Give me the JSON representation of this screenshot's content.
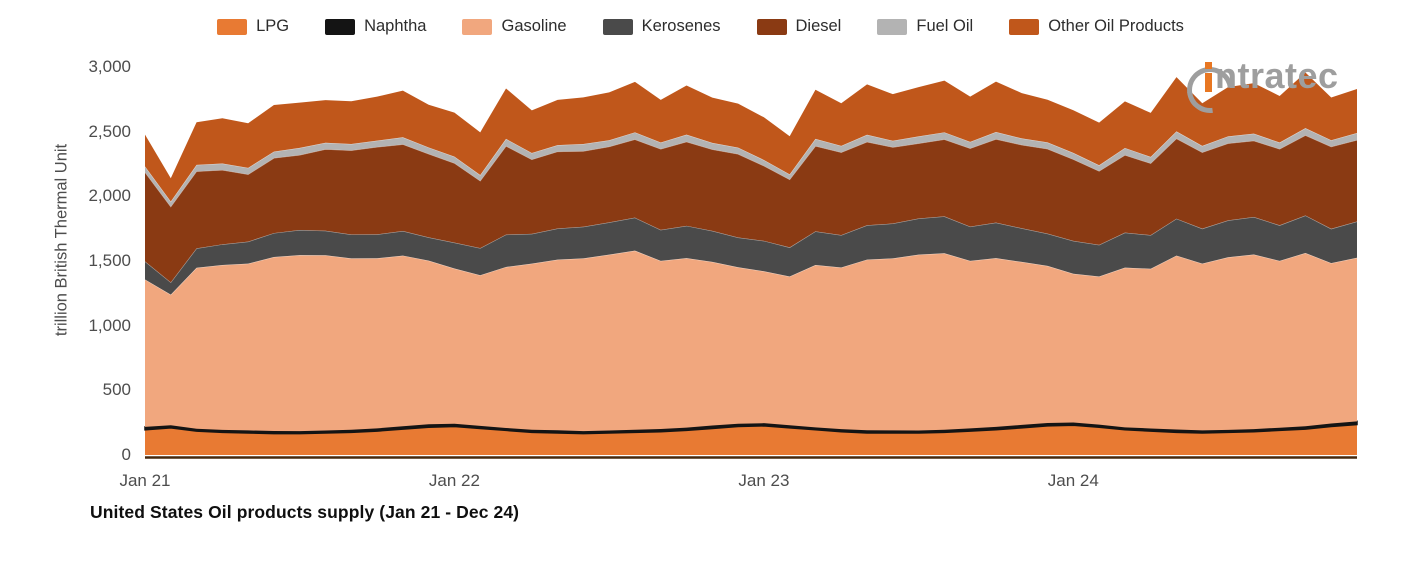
{
  "chart_data": {
    "type": "area",
    "stacked": true,
    "title": "United States Oil products supply (Jan 21 - Dec 24)",
    "xlabel": "",
    "ylabel": "trillion British Thermal Unit",
    "ylim": [
      0,
      3000
    ],
    "grid": false,
    "legend_position": "top-center",
    "yticks": [
      {
        "label": "0",
        "value": 0
      },
      {
        "label": "500",
        "value": 500
      },
      {
        "label": "1,000",
        "value": 1000
      },
      {
        "label": "1,500",
        "value": 1500
      },
      {
        "label": "2,000",
        "value": 2000
      },
      {
        "label": "2,500",
        "value": 2500
      },
      {
        "label": "3,000",
        "value": 3000
      }
    ],
    "xticks": [
      {
        "label": "Jan 21",
        "index": 0
      },
      {
        "label": "Jan 22",
        "index": 12
      },
      {
        "label": "Jan 23",
        "index": 24
      },
      {
        "label": "Jan 24",
        "index": 36
      }
    ],
    "categories": [
      "Jan 21",
      "Feb 21",
      "Mar 21",
      "Apr 21",
      "May 21",
      "Jun 21",
      "Jul 21",
      "Aug 21",
      "Sep 21",
      "Oct 21",
      "Nov 21",
      "Dec 21",
      "Jan 22",
      "Feb 22",
      "Mar 22",
      "Apr 22",
      "May 22",
      "Jun 22",
      "Jul 22",
      "Aug 22",
      "Sep 22",
      "Oct 22",
      "Nov 22",
      "Dec 22",
      "Jan 23",
      "Feb 23",
      "Mar 23",
      "Apr 23",
      "May 23",
      "Jun 23",
      "Jul 23",
      "Aug 23",
      "Sep 23",
      "Oct 23",
      "Nov 23",
      "Dec 23",
      "Jan 24",
      "Feb 24",
      "Mar 24",
      "Apr 24",
      "May 24",
      "Jun 24",
      "Jul 24",
      "Aug 24",
      "Sep 24",
      "Oct 24",
      "Nov 24",
      "Dec 24"
    ],
    "series": [
      {
        "key": "lpg",
        "name": "LPG",
        "color": "#E87A33",
        "values": [
          195,
          210,
          185,
          175,
          170,
          165,
          165,
          170,
          175,
          185,
          200,
          215,
          220,
          205,
          190,
          175,
          170,
          165,
          170,
          175,
          180,
          190,
          205,
          220,
          225,
          210,
          195,
          180,
          170,
          170,
          170,
          175,
          185,
          195,
          210,
          225,
          230,
          215,
          195,
          185,
          175,
          170,
          175,
          180,
          190,
          200,
          220,
          235
        ]
      },
      {
        "key": "naphtha",
        "name": "Naphtha",
        "color": "#141414",
        "values": [
          22,
          20,
          18,
          19,
          20,
          21,
          20,
          19,
          20,
          21,
          22,
          23,
          22,
          20,
          19,
          20,
          21,
          20,
          19,
          20,
          21,
          22,
          23,
          22,
          21,
          20,
          19,
          20,
          21,
          20,
          19,
          20,
          21,
          22,
          23,
          22,
          21,
          20,
          19,
          20,
          22,
          20,
          19,
          20,
          21,
          22,
          24,
          25
        ]
      },
      {
        "key": "gasoline",
        "name": "Gasoline",
        "color": "#F1A77E",
        "values": [
          1140,
          1010,
          1245,
          1275,
          1290,
          1345,
          1360,
          1355,
          1325,
          1315,
          1320,
          1265,
          1200,
          1165,
          1245,
          1285,
          1320,
          1335,
          1360,
          1385,
          1300,
          1310,
          1265,
          1210,
          1175,
          1150,
          1255,
          1250,
          1320,
          1330,
          1360,
          1365,
          1295,
          1305,
          1260,
          1215,
          1150,
          1145,
          1235,
          1235,
          1345,
          1290,
          1335,
          1350,
          1290,
          1340,
          1240,
          1265
        ]
      },
      {
        "key": "kerosenes",
        "name": "Kerosenes",
        "color": "#4A4A4A",
        "values": [
          140,
          95,
          150,
          160,
          170,
          185,
          195,
          190,
          185,
          185,
          190,
          180,
          200,
          210,
          250,
          230,
          240,
          245,
          250,
          255,
          240,
          250,
          240,
          230,
          235,
          225,
          260,
          250,
          265,
          270,
          280,
          285,
          265,
          275,
          260,
          250,
          255,
          245,
          270,
          260,
          285,
          270,
          285,
          290,
          275,
          290,
          265,
          280
        ]
      },
      {
        "key": "diesel",
        "name": "Diesel",
        "color": "#8A3A13",
        "values": [
          690,
          585,
          595,
          575,
          520,
          580,
          580,
          630,
          650,
          675,
          670,
          645,
          615,
          520,
          685,
          575,
          595,
          585,
          585,
          605,
          625,
          650,
          630,
          645,
          580,
          525,
          660,
          640,
          645,
          590,
          580,
          595,
          605,
          645,
          645,
          655,
          630,
          570,
          600,
          555,
          620,
          590,
          595,
          590,
          590,
          620,
          635,
          630
        ]
      },
      {
        "key": "fuel_oil",
        "name": "Fuel Oil",
        "color": "#B3B3B3",
        "values": [
          45,
          40,
          50,
          50,
          50,
          50,
          55,
          50,
          50,
          50,
          55,
          50,
          50,
          45,
          55,
          50,
          50,
          55,
          50,
          55,
          50,
          55,
          50,
          50,
          45,
          40,
          55,
          50,
          55,
          50,
          55,
          55,
          50,
          55,
          50,
          50,
          50,
          45,
          55,
          50,
          55,
          50,
          55,
          55,
          50,
          55,
          50,
          55
        ]
      },
      {
        "key": "other_oil_products",
        "name": "Other Oil Products",
        "color": "#C0571B",
        "values": [
          245,
          180,
          330,
          350,
          345,
          360,
          350,
          330,
          330,
          340,
          360,
          330,
          340,
          330,
          390,
          330,
          350,
          360,
          370,
          390,
          330,
          380,
          350,
          340,
          330,
          295,
          380,
          330,
          390,
          360,
          380,
          400,
          350,
          390,
          350,
          330,
          330,
          330,
          360,
          340,
          420,
          330,
          380,
          390,
          360,
          430,
          330,
          340
        ]
      }
    ]
  },
  "colors": {
    "axis_line": "#46290f",
    "tick_text": "#4d4d4d",
    "title_text": "#0f0f0f",
    "legend_text": "#2d2d2d",
    "logo_gray": "#9E9E9E",
    "logo_orange": "#E87722"
  },
  "logo": {
    "text": "ntratec",
    "word": "intratec"
  }
}
